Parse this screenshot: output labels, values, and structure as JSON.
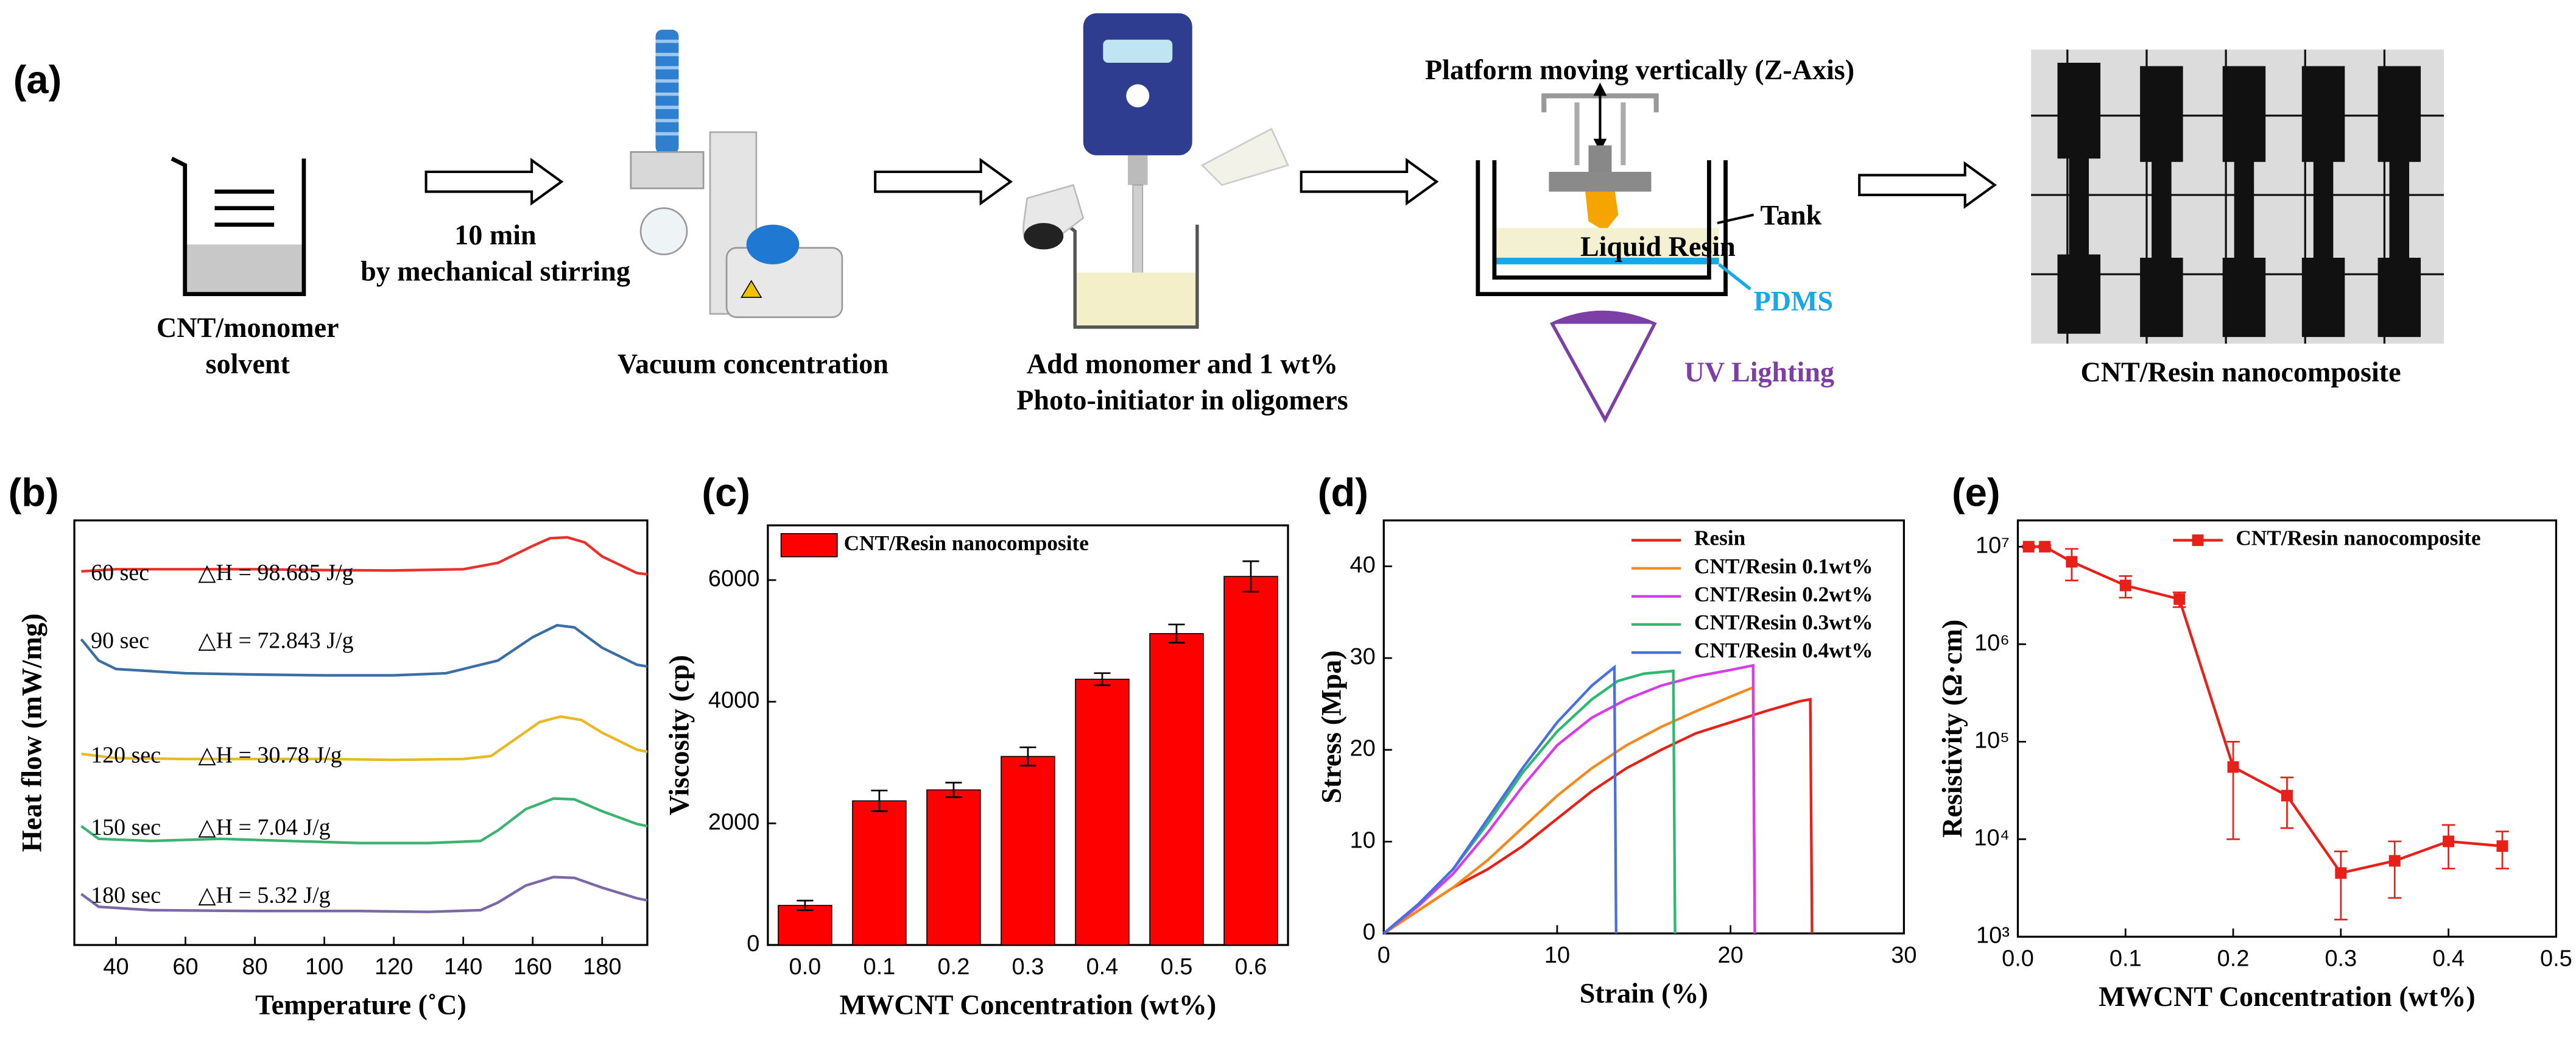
{
  "diagram": {
    "panel_label": "(a)",
    "beaker_label": [
      "CNT/monomer",
      "solvent"
    ],
    "stir_label": [
      "10 min",
      "by mechanical stirring"
    ],
    "evaporator_label": "Vacuum concentration",
    "mixing_label": [
      "Add monomer and 1 wt%",
      "Photo-initiator in oligomers"
    ],
    "printer": {
      "title": "Platform moving vertically (Z-Axis)",
      "tank": "Tank",
      "resin": "Liquid Resin",
      "film": "PDMS",
      "light": "UV Lighting"
    },
    "product_label": "CNT/Resin nanocomposite"
  },
  "chart_data": [
    {
      "panel_label": "(b)",
      "type": "line",
      "x_label": "Temperature (˚C)",
      "y_label": "Heat flow (mW/mg)",
      "xlim": [
        28,
        193
      ],
      "xticks": [
        40,
        60,
        80,
        100,
        120,
        140,
        160,
        180
      ],
      "ylim": [
        0,
        100
      ],
      "series": [
        {
          "name": "60 sec",
          "annotation": "△H = 98.685 J/g",
          "color": "#e8312a",
          "x": [
            30,
            40,
            60,
            80,
            100,
            120,
            140,
            150,
            160,
            165,
            170,
            175,
            180,
            190,
            193
          ],
          "values": [
            88,
            88.5,
            88.5,
            88.5,
            88.3,
            88.2,
            88.5,
            90,
            94,
            95.8,
            96,
            94.8,
            91.5,
            87.6,
            87.3
          ]
        },
        {
          "name": "90 sec",
          "annotation": "△H = 72.843  J/g",
          "color": "#3a6ea5",
          "x": [
            30,
            35,
            40,
            60,
            80,
            100,
            120,
            135,
            150,
            160,
            167,
            172,
            180,
            190,
            193
          ],
          "values": [
            72,
            67,
            65,
            64,
            63.7,
            63.5,
            63.5,
            64,
            67,
            72.5,
            75.3,
            74.8,
            70,
            66,
            65.6
          ]
        },
        {
          "name": "120 sec",
          "annotation": "△H  = 30.78  J/g",
          "color": "#e8b923",
          "x": [
            30,
            40,
            60,
            80,
            100,
            120,
            140,
            148,
            155,
            162,
            168,
            174,
            180,
            190,
            193
          ],
          "values": [
            45,
            44,
            43.8,
            43.8,
            43.8,
            43.6,
            43.8,
            44.5,
            48.5,
            52.5,
            53.8,
            53,
            50,
            46,
            45.5
          ]
        },
        {
          "name": "150 sec",
          "annotation": "△H  = 7.04  J/g",
          "color": "#3cb371",
          "x": [
            30,
            35,
            50,
            70,
            90,
            110,
            130,
            145,
            150,
            158,
            166,
            172,
            180,
            190,
            193
          ],
          "values": [
            28,
            25,
            24.5,
            25,
            24.5,
            24,
            24,
            24.5,
            27,
            32,
            34.5,
            34.3,
            31.5,
            28.5,
            28
          ]
        },
        {
          "name": "180 sec",
          "annotation": "△H  = 5.32  J/g",
          "color": "#7b68a6",
          "x": [
            30,
            35,
            50,
            80,
            110,
            130,
            145,
            150,
            158,
            166,
            172,
            180,
            190,
            193
          ],
          "values": [
            12,
            9,
            8.2,
            8,
            8,
            7.8,
            8.2,
            10,
            14,
            16,
            15.8,
            13.5,
            11,
            10.5
          ]
        }
      ]
    },
    {
      "panel_label": "(c)",
      "type": "bar",
      "x_label": "MWCNT  Concentration (wt%)",
      "y_label": "Viscosity (cp)",
      "categories": [
        "0.0",
        "0.1",
        "0.2",
        "0.3",
        "0.4",
        "0.5",
        "0.6"
      ],
      "ylim": [
        0,
        6900
      ],
      "yticks": [
        0,
        2000,
        4000,
        6000
      ],
      "legend": "upper left",
      "series": [
        {
          "name": "CNT/Resin nanocomposite",
          "color": "#ff0000",
          "values": [
            650,
            2370,
            2550,
            3100,
            4370,
            5120,
            6060
          ],
          "errors": [
            80,
            170,
            120,
            150,
            100,
            150,
            250
          ]
        }
      ]
    },
    {
      "panel_label": "(d)",
      "type": "line",
      "x_label": "Strain (%)",
      "y_label": "Stress (Mpa)",
      "xlim": [
        0,
        30
      ],
      "xticks": [
        0,
        10,
        20,
        30
      ],
      "ylim": [
        0,
        45
      ],
      "yticks": [
        0,
        10,
        20,
        30,
        40
      ],
      "legend": "upper right",
      "series": [
        {
          "name": "Resin",
          "color": "#e8201a",
          "x": [
            0,
            2,
            4,
            6,
            8,
            10,
            12,
            14,
            16,
            18,
            20,
            22,
            24,
            24.6,
            24.7
          ],
          "values": [
            0,
            2.5,
            5,
            7,
            9.5,
            12.5,
            15.5,
            18,
            20,
            21.8,
            23,
            24.2,
            25.3,
            25.5,
            0
          ]
        },
        {
          "name": "CNT/Resin 0.1wt%",
          "color": "#f28a1e",
          "x": [
            0,
            2,
            4,
            6,
            8,
            10,
            12,
            14,
            16,
            18,
            20,
            21.3,
            21.4
          ],
          "values": [
            0,
            2.5,
            5,
            8,
            11.5,
            15,
            18,
            20.5,
            22.5,
            24.2,
            25.8,
            26.8,
            0
          ]
        },
        {
          "name": "CNT/Resin 0.2wt%",
          "color": "#d63ce8",
          "x": [
            0,
            2,
            4,
            6,
            8,
            10,
            12,
            14,
            16,
            18,
            20,
            21.3,
            21.4
          ],
          "values": [
            0,
            3,
            6.5,
            11,
            16,
            20.5,
            23.5,
            25.5,
            27,
            28,
            28.7,
            29.2,
            0
          ]
        },
        {
          "name": "CNT/Resin 0.3wt%",
          "color": "#2fb872",
          "x": [
            0,
            2,
            4,
            6,
            8,
            10,
            12,
            13.5,
            15,
            16.7,
            16.8
          ],
          "values": [
            0,
            3.2,
            7,
            12,
            17.5,
            22,
            25.5,
            27.5,
            28.3,
            28.6,
            0
          ]
        },
        {
          "name": "CNT/Resin 0.4wt%",
          "color": "#4a6fe0",
          "x": [
            0,
            2,
            4,
            6,
            8,
            10,
            12,
            13.3,
            13.4
          ],
          "values": [
            0,
            3.2,
            7,
            12.5,
            18,
            23,
            27,
            29,
            0
          ]
        }
      ]
    },
    {
      "panel_label": "(e)",
      "type": "line",
      "x_label": "MWCNT  Concentration (wt%)",
      "y_label": "Resistivity  (Ω·cm)",
      "log_y": true,
      "xlim": [
        0,
        0.5
      ],
      "xticks": [
        {
          "value": 0,
          "label": "0.0"
        },
        0.1,
        0.2,
        0.3,
        0.4,
        0.5
      ],
      "ylim": [
        1000,
        18600000
      ],
      "yticks": [
        {
          "value": 1000,
          "label": "10³"
        },
        {
          "value": 10000,
          "label": "10⁴"
        },
        {
          "value": 100000,
          "label": "10⁵"
        },
        {
          "value": 1000000,
          "label": "10⁶"
        },
        {
          "value": 10000000,
          "label": "10⁷"
        }
      ],
      "legend": "upper right",
      "series": [
        {
          "name": "CNT/Resin nanocomposite",
          "color": "#e8201a",
          "marker": "square",
          "x": [
            0.01,
            0.025,
            0.05,
            0.1,
            0.15,
            0.2,
            0.25,
            0.3,
            0.35,
            0.4,
            0.45
          ],
          "values": [
            10000000,
            10000000,
            7000000,
            4000000,
            2900000,
            55000,
            28000,
            4500,
            6000,
            9500,
            8500
          ],
          "errors": [
            300000,
            300000,
            2500000,
            1000000,
            500000,
            45000,
            15000,
            3000,
            3500,
            4500,
            3500
          ]
        }
      ]
    }
  ]
}
